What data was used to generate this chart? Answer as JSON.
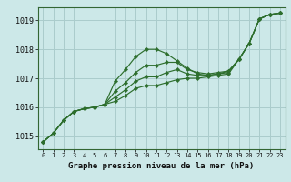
{
  "title": "Graphe pression niveau de la mer (hPa)",
  "background_color": "#cce8e8",
  "grid_color": "#aacccc",
  "line_color": "#2d6e2d",
  "marker": "D",
  "marker_size": 2.2,
  "xlim": [
    -0.5,
    23.5
  ],
  "ylim": [
    1014.55,
    1019.45
  ],
  "yticks": [
    1015,
    1016,
    1017,
    1018,
    1019
  ],
  "xticks": [
    0,
    1,
    2,
    3,
    4,
    5,
    6,
    7,
    8,
    9,
    10,
    11,
    12,
    13,
    14,
    15,
    16,
    17,
    18,
    19,
    20,
    21,
    22,
    23
  ],
  "series": [
    [
      1014.8,
      1015.1,
      1015.55,
      1015.85,
      1015.95,
      1016.0,
      1016.1,
      1016.9,
      1017.3,
      1017.75,
      1018.0,
      1018.0,
      1017.85,
      1017.6,
      1017.35,
      1017.15,
      1017.1,
      1017.15,
      1017.25,
      1017.65,
      1018.2,
      1019.05,
      1019.2,
      1019.25
    ],
    [
      1014.8,
      1015.1,
      1015.55,
      1015.85,
      1015.95,
      1016.0,
      1016.1,
      1016.55,
      1016.85,
      1017.2,
      1017.45,
      1017.45,
      1017.55,
      1017.55,
      1017.3,
      1017.2,
      1017.15,
      1017.2,
      1017.25,
      1017.65,
      1018.2,
      1019.05,
      1019.2,
      1019.25
    ],
    [
      1014.8,
      1015.1,
      1015.55,
      1015.85,
      1015.95,
      1016.0,
      1016.1,
      1016.35,
      1016.6,
      1016.9,
      1017.05,
      1017.05,
      1017.2,
      1017.3,
      1017.15,
      1017.1,
      1017.1,
      1017.15,
      1017.2,
      1017.65,
      1018.2,
      1019.05,
      1019.2,
      1019.25
    ],
    [
      1014.8,
      1015.1,
      1015.55,
      1015.85,
      1015.95,
      1016.0,
      1016.1,
      1016.2,
      1016.4,
      1016.65,
      1016.75,
      1016.75,
      1016.85,
      1016.95,
      1017.0,
      1017.0,
      1017.05,
      1017.1,
      1017.15,
      1017.65,
      1018.2,
      1019.05,
      1019.2,
      1019.25
    ]
  ]
}
